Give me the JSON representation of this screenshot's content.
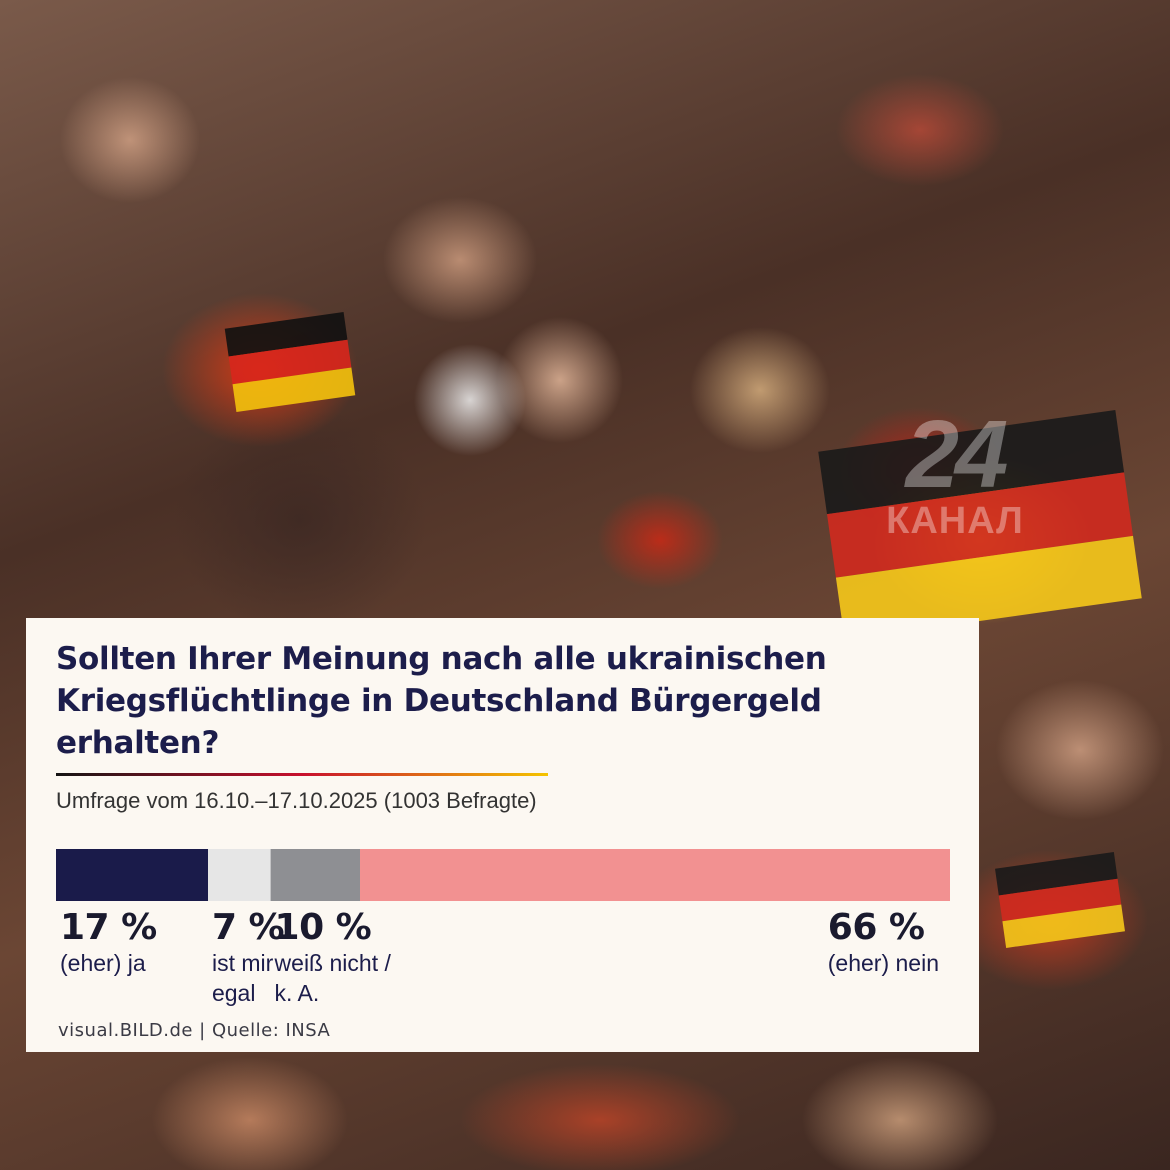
{
  "background": {
    "watermark": {
      "number": "24",
      "text": "КАНАЛ"
    }
  },
  "chart_data": {
    "type": "bar",
    "orientation": "horizontal-stacked",
    "title": "Sollten Ihrer Meinung nach alle ukrainischen Kriegsflüchtlinge in Deutschland Bürgergeld erhalten?",
    "subtitle": "Umfrage vom 16.10.–17.10.2025 (1003 Befragte)",
    "unit": "%",
    "series": [
      {
        "name": "(eher) ja",
        "value": 17,
        "label": "17 %",
        "color": "#1a1b4a"
      },
      {
        "name": "ist mir\negal",
        "value": 7,
        "label": "7 %",
        "color": "#e6e6e6"
      },
      {
        "name": "weiß nicht /\nk. A.",
        "value": 10,
        "label": "10 %",
        "color": "#8e8f93"
      },
      {
        "name": "(eher) nein",
        "value": 66,
        "label": "66 %",
        "color": "#f29191"
      }
    ],
    "source": "visual.BILD.de | Quelle: INSA"
  }
}
